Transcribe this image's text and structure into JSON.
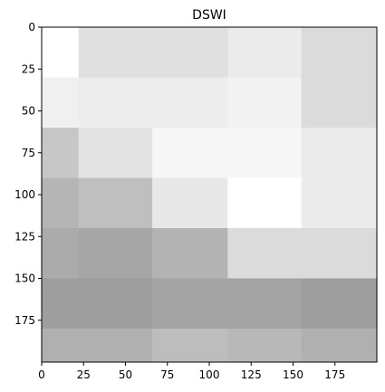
{
  "chart_data": {
    "type": "heatmap",
    "title": "DSWI",
    "xlabel": "",
    "ylabel": "",
    "xlim": [
      0,
      200
    ],
    "ylim": [
      0,
      200
    ],
    "x_edges": [
      0,
      22,
      66,
      111,
      155,
      200
    ],
    "y_edges": [
      0,
      30,
      60,
      90,
      120,
      150,
      180,
      200
    ],
    "x_ticks": [
      0,
      25,
      50,
      75,
      100,
      125,
      150,
      175
    ],
    "y_ticks": [
      0,
      25,
      50,
      75,
      100,
      125,
      150,
      175
    ],
    "y_axis_inverted": true,
    "colormap": "gray",
    "values": [
      [
        1.0,
        0.88,
        0.88,
        0.92,
        0.86
      ],
      [
        0.94,
        0.93,
        0.93,
        0.95,
        0.86
      ],
      [
        0.78,
        0.89,
        0.97,
        0.97,
        0.92
      ],
      [
        0.71,
        0.75,
        0.91,
        1.0,
        0.92
      ],
      [
        0.67,
        0.65,
        0.7,
        0.86,
        0.86
      ],
      [
        0.62,
        0.62,
        0.64,
        0.64,
        0.62
      ],
      [
        0.69,
        0.69,
        0.74,
        0.72,
        0.69
      ]
    ]
  }
}
